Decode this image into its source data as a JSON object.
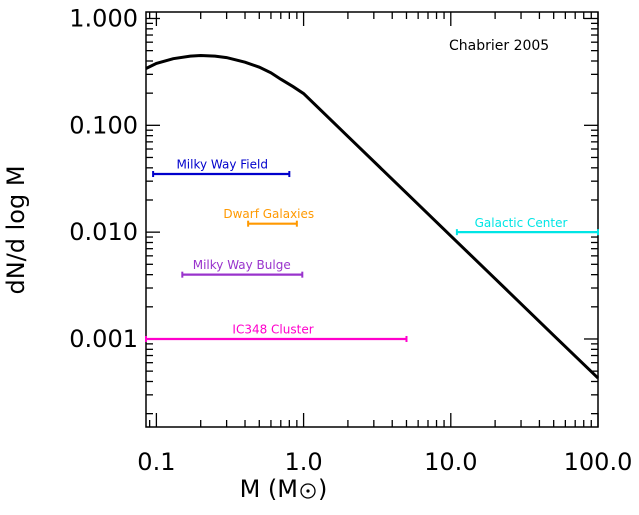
{
  "chart_data": {
    "type": "line",
    "annotation": "Chabrier 2005",
    "xlabel": "M (M",
    "ylabel": "dN/d log M",
    "xscale": "log",
    "yscale": "log",
    "xlim": [
      0.085,
      100
    ],
    "ylim": [
      0.00015,
      1.15
    ],
    "x_ticks": [
      {
        "value": 0.1,
        "label": "0.1"
      },
      {
        "value": 1,
        "label": "1.0"
      },
      {
        "value": 10,
        "label": "10.0"
      },
      {
        "value": 100,
        "label": "100.0"
      }
    ],
    "y_ticks": [
      {
        "value": 1,
        "label": "1.000"
      },
      {
        "value": 0.1,
        "label": "0.100"
      },
      {
        "value": 0.01,
        "label": "0.010"
      },
      {
        "value": 0.001,
        "label": "0.001"
      }
    ],
    "imf_curve": {
      "color": "#000000",
      "points": [
        [
          0.085,
          0.34
        ],
        [
          0.1,
          0.38
        ],
        [
          0.13,
          0.42
        ],
        [
          0.17,
          0.445
        ],
        [
          0.2,
          0.45
        ],
        [
          0.25,
          0.445
        ],
        [
          0.3,
          0.43
        ],
        [
          0.4,
          0.39
        ],
        [
          0.5,
          0.35
        ],
        [
          0.6,
          0.31
        ],
        [
          0.7,
          0.27
        ],
        [
          0.85,
          0.23
        ],
        [
          1.0,
          0.198
        ],
        [
          2.0,
          0.0788
        ],
        [
          5.0,
          0.0232
        ],
        [
          10.0,
          0.00923
        ],
        [
          20.0,
          0.00367
        ],
        [
          50.0,
          0.00108
        ],
        [
          100.0,
          0.00043
        ]
      ]
    },
    "mass_ranges": [
      {
        "label": "Milky Way Field",
        "xmin": 0.095,
        "xmax": 0.8,
        "y": 0.035,
        "color": "#0000cc",
        "label_x": 0.28,
        "label_y": 0.043
      },
      {
        "label": "Dwarf Galaxies",
        "xmin": 0.42,
        "xmax": 0.9,
        "y": 0.012,
        "color": "#ff9900",
        "label_x": 0.58,
        "label_y": 0.0148
      },
      {
        "label": "Milky Way Bulge",
        "xmin": 0.15,
        "xmax": 0.98,
        "y": 0.004,
        "color": "#9933cc",
        "label_x": 0.38,
        "label_y": 0.0049
      },
      {
        "label": "IC348 Cluster",
        "xmin": 0.085,
        "xmax": 5.0,
        "y": 0.001,
        "color": "#ff00cc",
        "label_x": 0.62,
        "label_y": 0.00123
      },
      {
        "label": "Galactic Center",
        "xmin": 11.0,
        "xmax": 100.0,
        "y": 0.01,
        "color": "#00e5e5",
        "label_x": 30.0,
        "label_y": 0.0122
      }
    ]
  }
}
